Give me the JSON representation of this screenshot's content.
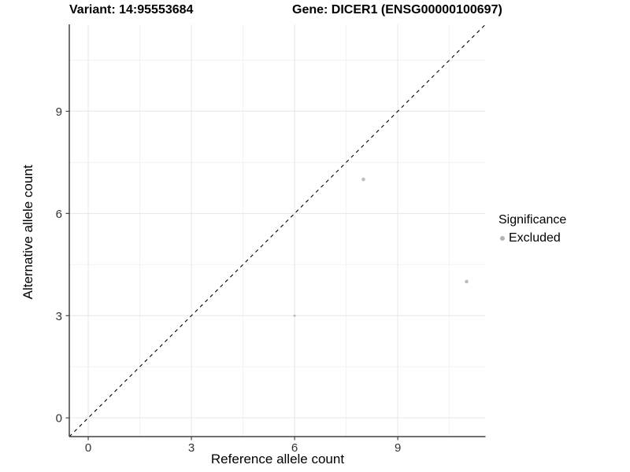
{
  "chart_data": {
    "type": "scatter",
    "title_left": "Variant: 14:95553684",
    "title_right": "Gene: DICER1 (ENSG00000100697)",
    "xlabel": "Reference allele count",
    "ylabel": "Alternative allele count",
    "xlim": [
      -0.55,
      11.55
    ],
    "ylim": [
      -0.55,
      11.55
    ],
    "xticks": [
      0,
      3,
      6,
      9
    ],
    "yticks": [
      0,
      3,
      6,
      9
    ],
    "x_minor_ticks": [
      1.5,
      4.5,
      7.5,
      10.5
    ],
    "y_minor_ticks": [
      1.5,
      4.5,
      7.5,
      10.5
    ],
    "grid": true,
    "legend_position": "right",
    "identity_line": {
      "style": "dashed",
      "slope": 1,
      "intercept": 0,
      "color": "#000000"
    },
    "series": [
      {
        "name": "Excluded",
        "color": "#bdbdbd",
        "points": [
          {
            "x": 6,
            "y": 3,
            "r": 1.5
          },
          {
            "x": 8,
            "y": 7,
            "r": 2.3
          },
          {
            "x": 11,
            "y": 4,
            "r": 2.3
          }
        ]
      }
    ],
    "legend": {
      "title": "Significance",
      "entries": [
        {
          "label": "Excluded",
          "color": "#b3b3b3"
        }
      ]
    },
    "colors": {
      "point": "#bdbdbd",
      "grid_major": "#e6e6e6",
      "grid_minor": "#f2f2f2",
      "axis_line": "#404040",
      "tick_label": "#333333"
    }
  }
}
